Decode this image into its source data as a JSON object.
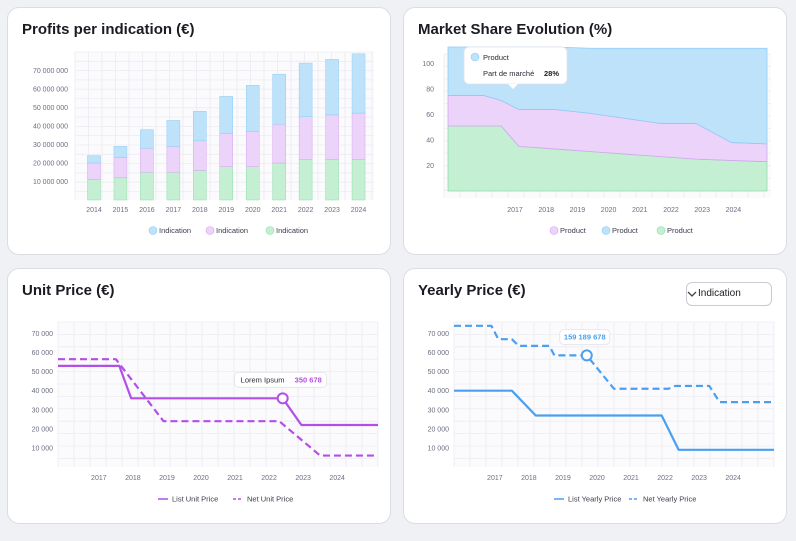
{
  "colors": {
    "blue": "#bfe2fb",
    "blue_edge": "#8fccf5",
    "pink": "#ecd3fa",
    "pink_edge": "#d4a6f0",
    "green": "#c4efd2",
    "green_edge": "#8fdcab",
    "purple": "#b34fe6",
    "line_blue": "#4a9ff0",
    "grid": "#ececf2",
    "tick": "#6b6f80"
  },
  "charts": {
    "profits": {
      "title": "Profits per indication (€)",
      "chart_data": {
        "type": "bar",
        "stacked": true,
        "categories": [
          "2014",
          "2015",
          "2016",
          "2017",
          "2018",
          "2019",
          "2020",
          "2021",
          "2022",
          "2023",
          "2024"
        ],
        "series": [
          {
            "name": "Indication",
            "color": "green",
            "values": [
              11000000,
              12000000,
              15000000,
              15000000,
              16000000,
              18000000,
              18000000,
              20000000,
              22000000,
              22000000,
              22000000
            ]
          },
          {
            "name": "Indication",
            "color": "pink",
            "values": [
              9000000,
              11000000,
              13000000,
              14000000,
              16000000,
              18000000,
              19000000,
              21000000,
              23000000,
              24000000,
              25000000
            ]
          },
          {
            "name": "Indication",
            "color": "blue",
            "values": [
              4000000,
              6000000,
              10000000,
              14000000,
              16000000,
              20000000,
              25000000,
              27000000,
              29000000,
              30000000,
              32000000
            ]
          }
        ],
        "ylim": [
          0,
          80000000
        ],
        "yticks": [
          10000000,
          20000000,
          30000000,
          40000000,
          50000000,
          60000000,
          70000000
        ],
        "ytick_labels": [
          "10 000 000",
          "20 000 000",
          "30 000 000",
          "40 000 000",
          "50 000 000",
          "60 000 000",
          "70 000 000"
        ],
        "legend": [
          "Indication",
          "Indication",
          "Indication"
        ]
      }
    },
    "market": {
      "title": "Market Share Evolution (%)",
      "tooltip": {
        "title": "Product",
        "label": "Part de marché",
        "value": "28%"
      },
      "chart_data": {
        "type": "area",
        "stacked": true,
        "x_labels": [
          "2017",
          "2018",
          "2019",
          "2020",
          "2021",
          "2022",
          "2023",
          "2024"
        ],
        "x": [
          2016,
          2016.5,
          2017,
          2017.5,
          2018,
          2019,
          2020,
          2021,
          2022,
          2023,
          2024,
          2025
        ],
        "series": [
          {
            "name": "Product",
            "color": "green",
            "values": [
              51,
              51,
              51,
              51,
              35,
              33,
              31,
              29,
              27,
              25,
              24,
              23
            ]
          },
          {
            "name": "Product",
            "color": "pink",
            "values": [
              24,
              24,
              24,
              20,
              29,
              31,
              30,
              28,
              26,
              28,
              14,
              14
            ]
          },
          {
            "name": "Product",
            "color": "blue",
            "values": [
              38,
              38,
              38,
              42,
              49,
              49,
              51,
              55,
              59,
              59,
              74,
              75
            ]
          }
        ],
        "ylim": [
          0,
          113
        ],
        "yticks": [
          20,
          40,
          60,
          80,
          100
        ],
        "legend": [
          "Product",
          "Product",
          "Product"
        ]
      }
    },
    "unit": {
      "title": "Unit Price (€)",
      "tooltip": {
        "label": "Lorem Ipsum",
        "value": "350 678"
      },
      "chart_data": {
        "type": "line",
        "x_labels": [
          "2017",
          "2018",
          "2019",
          "2020",
          "2021",
          "2022",
          "2023",
          "2024"
        ],
        "series": [
          {
            "name": "List Unit Price",
            "style": "solid",
            "points": [
              [
                2015.8,
                53000
              ],
              [
                2017.6,
                53000
              ],
              [
                2017.95,
                36000
              ],
              [
                2022.4,
                36000
              ],
              [
                2022.95,
                22000
              ],
              [
                2025.2,
                22000
              ]
            ]
          },
          {
            "name": "Net Unit Price",
            "style": "dashed",
            "points": [
              [
                2015.8,
                56500
              ],
              [
                2017.5,
                56500
              ],
              [
                2018.9,
                24000
              ],
              [
                2022.3,
                24000
              ],
              [
                2023.5,
                6000
              ],
              [
                2025.2,
                6000
              ]
            ]
          }
        ],
        "marker": {
          "x": 2022.4,
          "y": 36000
        },
        "ylim": [
          0,
          76000
        ],
        "yticks": [
          10000,
          20000,
          30000,
          40000,
          50000,
          60000,
          70000
        ],
        "ytick_labels": [
          "10 000",
          "20 000",
          "30 000",
          "40 000",
          "50 000",
          "60 000",
          "70 000"
        ],
        "legend": [
          "List Unit Price",
          "Net Unit Price"
        ]
      }
    },
    "yearly": {
      "title": "Yearly Price (€)",
      "dropdown": "Indication",
      "tooltip": {
        "value": "159 189 678"
      },
      "chart_data": {
        "type": "line",
        "x_labels": [
          "2017",
          "2018",
          "2019",
          "2020",
          "2021",
          "2022",
          "2023",
          "2024"
        ],
        "series": [
          {
            "name": "List Yearly Price",
            "style": "solid",
            "points": [
              [
                2015.8,
                40000
              ],
              [
                2017.5,
                40000
              ],
              [
                2018.2,
                27000
              ],
              [
                2021.9,
                27000
              ],
              [
                2022.4,
                9000
              ],
              [
                2025.2,
                9000
              ]
            ]
          },
          {
            "name": "Net Yearly Price",
            "style": "dashed",
            "points": [
              [
                2015.8,
                74000
              ],
              [
                2016.9,
                74000
              ],
              [
                2017.1,
                67000
              ],
              [
                2017.5,
                67000
              ],
              [
                2017.7,
                63500
              ],
              [
                2018.6,
                63500
              ],
              [
                2018.75,
                58500
              ],
              [
                2019.7,
                58500
              ],
              [
                2020.5,
                41000
              ],
              [
                2022.1,
                41000
              ],
              [
                2022.3,
                42500
              ],
              [
                2023.3,
                42500
              ],
              [
                2023.6,
                34000
              ],
              [
                2025.2,
                34000
              ]
            ]
          }
        ],
        "marker": {
          "x": 2019.7,
          "y": 58500
        },
        "ylim": [
          0,
          76000
        ],
        "yticks": [
          10000,
          20000,
          30000,
          40000,
          50000,
          60000,
          70000
        ],
        "ytick_labels": [
          "10 000",
          "20 000",
          "30 000",
          "40 000",
          "50 000",
          "60 000",
          "70 000"
        ],
        "legend": [
          "List Yearly Price",
          "Net Yearly Price"
        ]
      }
    }
  }
}
